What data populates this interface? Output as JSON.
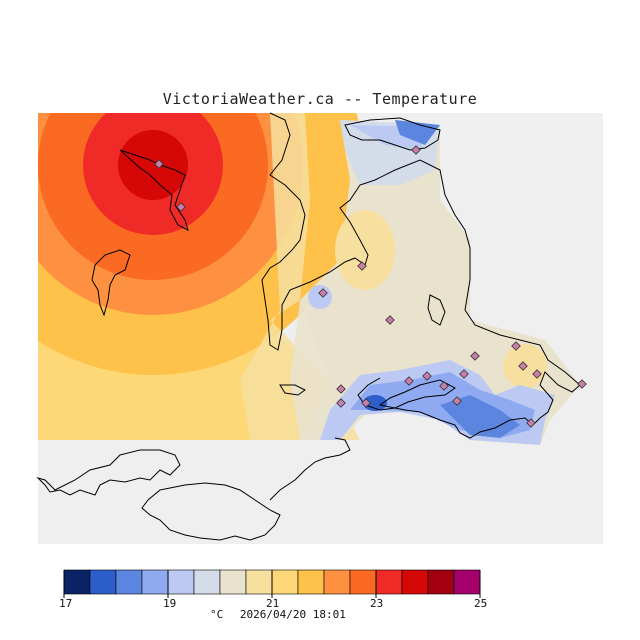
{
  "title": "VictoriaWeather.ca -- Temperature",
  "units": "°C",
  "timestamp": "2026/04/20 18:01",
  "legend": {
    "tick_labels": [
      "17",
      "19",
      "21",
      "23",
      "25"
    ],
    "colors": [
      "#0b2466",
      "#2e5ec9",
      "#5c85e0",
      "#8faaf0",
      "#bccaf3",
      "#d4dbe9",
      "#e9e2cd",
      "#f6df9f",
      "#fed777",
      "#fec14a",
      "#fd9141",
      "#fb6a22",
      "#f02a26",
      "#d60707",
      "#a30012",
      "#a4006b"
    ]
  },
  "colors": {
    "background": "#ffffff",
    "no_data": "#efefef",
    "land_outline": "#000000",
    "station_marker": "#c77fa9"
  }
}
